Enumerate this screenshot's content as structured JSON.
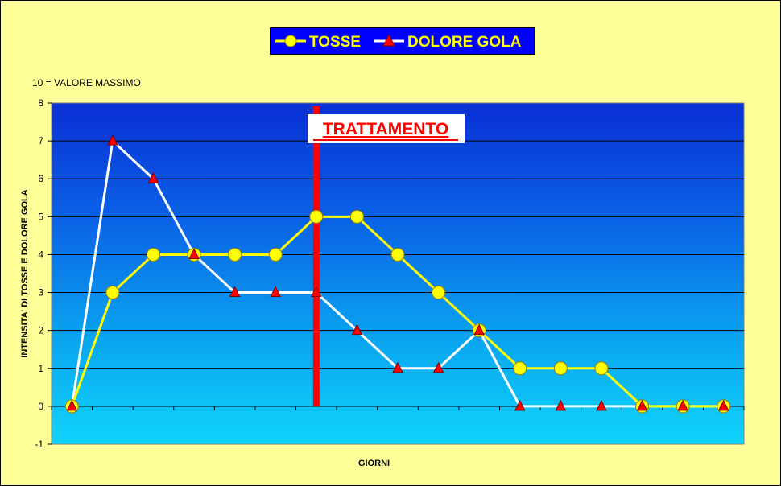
{
  "chart_data": {
    "type": "line",
    "note": "10 = VALORE MASSIMO",
    "xlabel": "GIORNI",
    "ylabel": "INTENSITA' DI TOSSE E DOLORE GOLA",
    "ylim": [
      -1,
      8
    ],
    "yticks": [
      -1,
      0,
      1,
      2,
      3,
      4,
      5,
      6,
      7,
      8
    ],
    "x": [
      1,
      2,
      3,
      4,
      5,
      6,
      7,
      8,
      9,
      10,
      11,
      12,
      13,
      14,
      15,
      16,
      17
    ],
    "grid": true,
    "legend_position": "top-center",
    "series": [
      {
        "name": "TOSSE",
        "color": "#ffff00",
        "marker": "circle",
        "line_color": "#ffff00",
        "values": [
          0,
          3,
          4,
          4,
          4,
          4,
          5,
          5,
          4,
          3,
          2,
          1,
          1,
          1,
          0,
          0,
          0
        ]
      },
      {
        "name": "DOLORE GOLA",
        "color": "#ff0000",
        "marker": "triangle",
        "line_color": "#ffffff",
        "values": [
          0,
          7,
          6,
          4,
          3,
          3,
          3,
          2,
          1,
          1,
          2,
          0,
          0,
          0,
          0,
          0,
          0
        ]
      }
    ],
    "annotation": {
      "text": "TRATTAMENTO",
      "after_x": 6.5,
      "color": "#ff0000"
    }
  }
}
